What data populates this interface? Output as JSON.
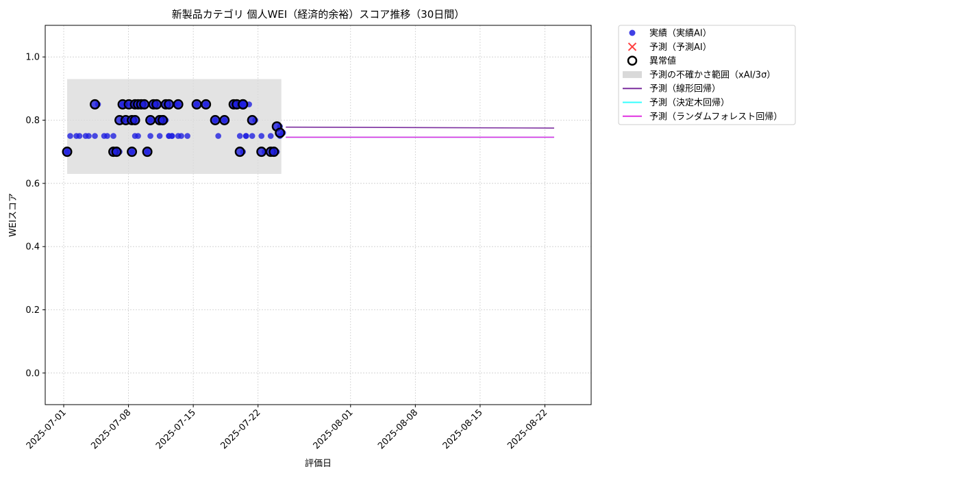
{
  "chart_data": {
    "type": "scatter",
    "title": "新製品カテゴリ 個人WEI（経済的余裕）スコア推移（30日間）",
    "xlabel": "評価日",
    "ylabel": "WEIスコア",
    "ylim": [
      -0.1,
      1.1
    ],
    "xlim": [
      "2025-06-29",
      "2025-08-27"
    ],
    "y_ticks": [
      "0.0",
      "0.2",
      "0.4",
      "0.6",
      "0.8",
      "1.0"
    ],
    "x_ticks": [
      "2025-07-01",
      "2025-07-08",
      "2025-07-15",
      "2025-07-22",
      "2025-08-01",
      "2025-08-08",
      "2025-08-15",
      "2025-08-22"
    ],
    "grid": true,
    "legend_position": "outside-right-top",
    "legend": [
      "実績（実績AI）",
      "予測（予測AI）",
      "異常値",
      "予測の不確かさ範囲（xAI/3σ）",
      "予測（線形回帰）",
      "予測（決定木回帰）",
      "予測（ランダムフォレスト回帰）"
    ],
    "colors": {
      "actual": "#1f1fe0",
      "predicted": "#ff4040",
      "anomaly": "#000000",
      "band": "#d9d9d9",
      "linear": "#7b2d9e",
      "tree": "#33ffff",
      "forest": "#e030e0"
    },
    "uncertainty_band": {
      "x": [
        "2025-07-01",
        "2025-07-24"
      ],
      "y": [
        0.63,
        0.93
      ]
    },
    "series": [
      {
        "name": "実績（実績AI）",
        "kind": "scatter",
        "points": [
          [
            "2025-07-01",
            0.7
          ],
          [
            "2025-07-01",
            0.75
          ],
          [
            "2025-07-02",
            0.75
          ],
          [
            "2025-07-02",
            0.75
          ],
          [
            "2025-07-03",
            0.75
          ],
          [
            "2025-07-03",
            0.75
          ],
          [
            "2025-07-04",
            0.75
          ],
          [
            "2025-07-04",
            0.85
          ],
          [
            "2025-07-05",
            0.75
          ],
          [
            "2025-07-05",
            0.75
          ],
          [
            "2025-07-06",
            0.75
          ],
          [
            "2025-07-06",
            0.7
          ],
          [
            "2025-07-06",
            0.7
          ],
          [
            "2025-07-06",
            0.8
          ],
          [
            "2025-07-07",
            0.85
          ],
          [
            "2025-07-07",
            0.8
          ],
          [
            "2025-07-07",
            0.85
          ],
          [
            "2025-07-07",
            0.8
          ],
          [
            "2025-07-07",
            0.8
          ],
          [
            "2025-07-07",
            0.75
          ],
          [
            "2025-07-08",
            0.7
          ],
          [
            "2025-07-08",
            0.75
          ],
          [
            "2025-07-08",
            0.85
          ],
          [
            "2025-07-08",
            0.85
          ],
          [
            "2025-07-09",
            0.85
          ],
          [
            "2025-07-09",
            0.85
          ],
          [
            "2025-07-09",
            0.7
          ],
          [
            "2025-07-09",
            0.75
          ],
          [
            "2025-07-10",
            0.8
          ],
          [
            "2025-07-10",
            0.85
          ],
          [
            "2025-07-10",
            0.85
          ],
          [
            "2025-07-10",
            0.8
          ],
          [
            "2025-07-10",
            0.8
          ],
          [
            "2025-07-10",
            0.85
          ],
          [
            "2025-07-11",
            0.75
          ],
          [
            "2025-07-11",
            0.8
          ],
          [
            "2025-07-11",
            0.8
          ],
          [
            "2025-07-11",
            0.75
          ],
          [
            "2025-07-11",
            0.75
          ],
          [
            "2025-07-12",
            0.75
          ],
          [
            "2025-07-12",
            0.75
          ],
          [
            "2025-07-12",
            0.85
          ],
          [
            "2025-07-12",
            0.75
          ],
          [
            "2025-07-13",
            0.85
          ],
          [
            "2025-07-13",
            0.75
          ],
          [
            "2025-07-14",
            0.75
          ],
          [
            "2025-07-15",
            0.85
          ],
          [
            "2025-07-16",
            0.85
          ],
          [
            "2025-07-17",
            0.8
          ],
          [
            "2025-07-17",
            0.75
          ],
          [
            "2025-07-18",
            0.8
          ],
          [
            "2025-07-19",
            0.85
          ],
          [
            "2025-07-19",
            0.85
          ],
          [
            "2025-07-19",
            0.75
          ],
          [
            "2025-07-19",
            0.7
          ],
          [
            "2025-07-19",
            0.75
          ],
          [
            "2025-07-19",
            0.85
          ],
          [
            "2025-07-20",
            0.85
          ],
          [
            "2025-07-20",
            0.75
          ],
          [
            "2025-07-21",
            0.75
          ],
          [
            "2025-07-21",
            0.8
          ],
          [
            "2025-07-22",
            0.75
          ],
          [
            "2025-07-22",
            0.7
          ],
          [
            "2025-07-23",
            0.75
          ],
          [
            "2025-07-23",
            0.7
          ],
          [
            "2025-07-23",
            0.7
          ],
          [
            "2025-07-23",
            0.78
          ],
          [
            "2025-07-24",
            0.75
          ],
          [
            "2025-07-24",
            0.76
          ]
        ]
      },
      {
        "name": "異常値",
        "kind": "anomaly",
        "points": [
          [
            "2025-07-01",
            0.7
          ],
          [
            "2025-07-04",
            0.85
          ],
          [
            "2025-07-06",
            0.7
          ],
          [
            "2025-07-06",
            0.7
          ],
          [
            "2025-07-06",
            0.8
          ],
          [
            "2025-07-07",
            0.85
          ],
          [
            "2025-07-07",
            0.8
          ],
          [
            "2025-07-07",
            0.85
          ],
          [
            "2025-07-07",
            0.8
          ],
          [
            "2025-07-07",
            0.8
          ],
          [
            "2025-07-08",
            0.7
          ],
          [
            "2025-07-08",
            0.85
          ],
          [
            "2025-07-08",
            0.85
          ],
          [
            "2025-07-09",
            0.85
          ],
          [
            "2025-07-09",
            0.85
          ],
          [
            "2025-07-09",
            0.7
          ],
          [
            "2025-07-10",
            0.8
          ],
          [
            "2025-07-10",
            0.85
          ],
          [
            "2025-07-10",
            0.85
          ],
          [
            "2025-07-10",
            0.8
          ],
          [
            "2025-07-10",
            0.8
          ],
          [
            "2025-07-10",
            0.85
          ],
          [
            "2025-07-11",
            0.8
          ],
          [
            "2025-07-11",
            0.8
          ],
          [
            "2025-07-12",
            0.85
          ],
          [
            "2025-07-13",
            0.85
          ],
          [
            "2025-07-15",
            0.85
          ],
          [
            "2025-07-16",
            0.85
          ],
          [
            "2025-07-17",
            0.8
          ],
          [
            "2025-07-18",
            0.8
          ],
          [
            "2025-07-19",
            0.85
          ],
          [
            "2025-07-19",
            0.85
          ],
          [
            "2025-07-19",
            0.7
          ],
          [
            "2025-07-19",
            0.85
          ],
          [
            "2025-07-20",
            0.85
          ],
          [
            "2025-07-21",
            0.8
          ],
          [
            "2025-07-22",
            0.7
          ],
          [
            "2025-07-23",
            0.7
          ],
          [
            "2025-07-23",
            0.7
          ],
          [
            "2025-07-23",
            0.78
          ],
          [
            "2025-07-24",
            0.76
          ]
        ]
      },
      {
        "name": "予測（線形回帰）",
        "kind": "line",
        "points": [
          [
            "2025-07-25",
            0.778
          ],
          [
            "2025-08-23",
            0.775
          ]
        ]
      },
      {
        "name": "予測（決定木回帰）",
        "kind": "line",
        "points": [
          [
            "2025-07-25",
            0.746
          ],
          [
            "2025-08-23",
            0.746
          ]
        ]
      },
      {
        "name": "予測（ランダムフォレスト回帰）",
        "kind": "line",
        "points": [
          [
            "2025-07-25",
            0.746
          ],
          [
            "2025-08-23",
            0.746
          ]
        ]
      }
    ]
  }
}
